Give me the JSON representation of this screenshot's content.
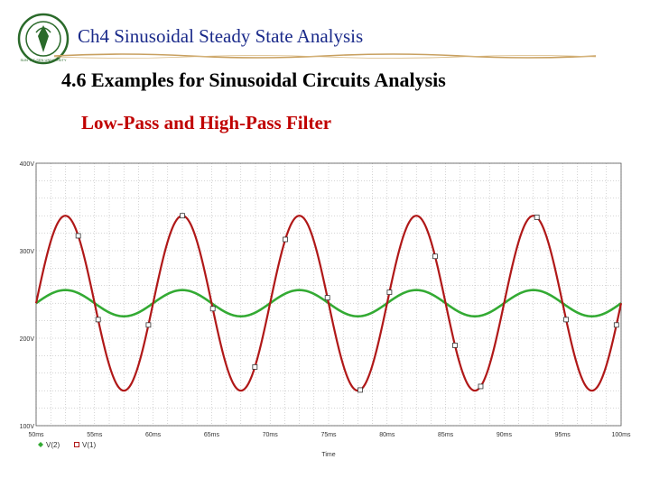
{
  "header": {
    "title": "Ch4  Sinusoidal Steady State Analysis",
    "logo_text": "SUN YAT-SEN UNIVERSITY"
  },
  "section": {
    "title": "4.6 Examples for Sinusoidal Circuits Analysis"
  },
  "subtitle": "Low-Pass and High-Pass Filter",
  "colors": {
    "header": "#1a2a8a",
    "subtitle": "#c00000",
    "red_trace": "#b01818",
    "green_trace": "#33aa33",
    "grid": "#aaaaaa"
  },
  "chart_data": {
    "type": "line",
    "xlabel": "Time",
    "ylabel": "",
    "x_unit": "ms",
    "xlim": [
      50,
      100
    ],
    "ylim": [
      100,
      400
    ],
    "xticks": [
      "50ms",
      "55ms",
      "60ms",
      "65ms",
      "70ms",
      "75ms",
      "80ms",
      "85ms",
      "90ms",
      "95ms",
      "100ms"
    ],
    "yticks": [
      "100V",
      "200V",
      "300V",
      "400V"
    ],
    "ytick_values": [
      100,
      200,
      300,
      400
    ],
    "series": [
      {
        "name": "V(2)",
        "color": "#33aa33",
        "marker": "diamond",
        "offset": 240,
        "amplitude": 15,
        "period_ms": 10,
        "peak_at_ms": 52.5
      },
      {
        "name": "V(1)",
        "color": "#b01818",
        "marker": "square",
        "offset": 240,
        "amplitude": 100,
        "period_ms": 10,
        "peak_at_ms": 52.5
      }
    ],
    "legend": [
      "V(2)",
      "V(1)"
    ]
  }
}
